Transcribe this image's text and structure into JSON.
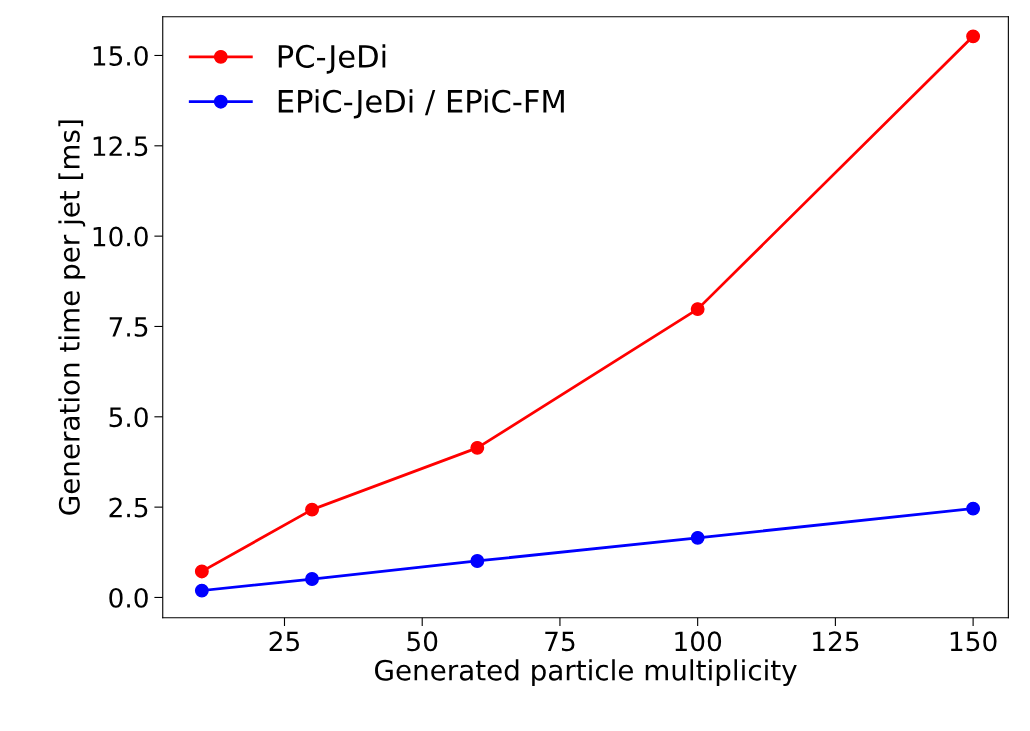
{
  "chart_data": {
    "type": "line",
    "xlabel": "Generated particle multiplicity",
    "ylabel": "Generation time per jet [ms]",
    "x": [
      10,
      30,
      60,
      100,
      150
    ],
    "series": [
      {
        "name": "PC-JeDi",
        "color": "#ff0000",
        "values": [
          0.72,
          2.43,
          4.14,
          7.98,
          15.53
        ]
      },
      {
        "name": "EPiC-JeDi / EPiC-FM",
        "color": "#0000ff",
        "values": [
          0.19,
          0.51,
          1.01,
          1.65,
          2.46
        ]
      }
    ],
    "xlim": [
      2.9,
      156.4
    ],
    "ylim": [
      -0.56,
      16.07
    ],
    "xticks": [
      25,
      50,
      75,
      100,
      125,
      150
    ],
    "yticks": [
      {
        "value": 0,
        "label": "0.0"
      },
      2.5,
      {
        "value": 5,
        "label": "5.0"
      },
      7.5,
      {
        "value": 10,
        "label": "10.0"
      },
      12.5,
      {
        "value": 15,
        "label": "15.0"
      }
    ],
    "legend": "top left",
    "marker": "circle",
    "line_style": "solid",
    "grid": false
  }
}
